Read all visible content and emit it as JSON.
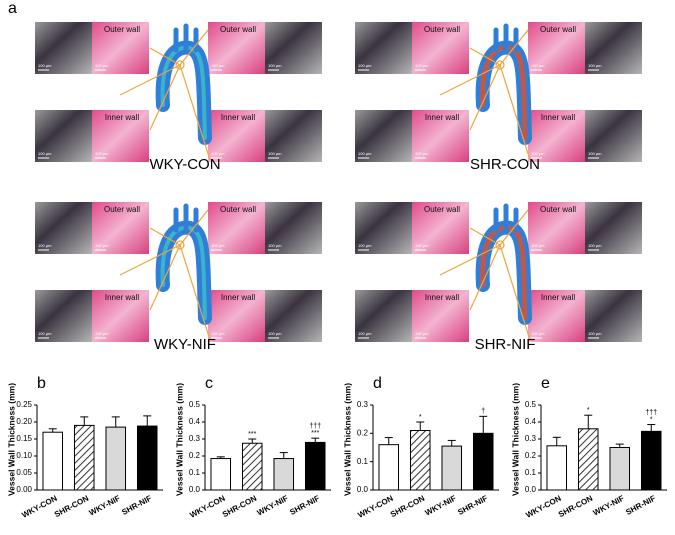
{
  "panel_a": {
    "label": "a",
    "scale_bar": "100 µm",
    "groups": [
      {
        "name": "WKY-CON",
        "outer": "Outer wall",
        "inner": "Inner wall"
      },
      {
        "name": "SHR-CON",
        "outer": "Outer wall",
        "inner": "Inner wall"
      },
      {
        "name": "WKY-NIF",
        "outer": "Outer wall",
        "inner": "Inner wall"
      },
      {
        "name": "SHR-NIF",
        "outer": "Outer wall",
        "inner": "Inner wall"
      }
    ]
  },
  "chart_data": [
    {
      "type": "bar",
      "panel": "b",
      "y_label": "Vessel Wall Thickness (mm)",
      "categories": [
        "WKY-CON",
        "SHR-CON",
        "WKY-NIF",
        "SHR-NIF"
      ],
      "values": [
        0.17,
        0.19,
        0.185,
        0.188
      ],
      "errors": [
        0.01,
        0.025,
        0.03,
        0.03
      ],
      "colors": [
        "#ffffff",
        "#ffffff",
        "#d9d9d9",
        "#000000"
      ],
      "hatched": [
        false,
        true,
        false,
        false
      ],
      "annotations": [
        null,
        null,
        null,
        null
      ],
      "ylim": [
        0,
        0.25
      ],
      "yticks": [
        {
          "value": 0,
          "label": "0.00"
        },
        0.05,
        {
          "value": 0.1,
          "label": "0.10"
        },
        0.15,
        {
          "value": 0.2,
          "label": "0.20"
        },
        0.25
      ]
    },
    {
      "type": "bar",
      "panel": "c",
      "y_label": "Vessel Wall Thickness (mm)",
      "categories": [
        "WKY-CON",
        "SHR-CON",
        "WKY-NIF",
        "SHR-NIF"
      ],
      "values": [
        0.185,
        0.275,
        0.185,
        0.28
      ],
      "errors": [
        0.01,
        0.025,
        0.035,
        0.025
      ],
      "colors": [
        "#ffffff",
        "#ffffff",
        "#d9d9d9",
        "#000000"
      ],
      "hatched": [
        false,
        true,
        false,
        false
      ],
      "annotations": [
        null,
        [
          "***"
        ],
        null,
        [
          "†††",
          "***"
        ]
      ],
      "ylim": [
        0,
        0.5
      ],
      "yticks": [
        {
          "value": 0,
          "label": "0.0"
        },
        0.1,
        0.2,
        0.3,
        0.4,
        0.5
      ]
    },
    {
      "type": "bar",
      "panel": "d",
      "y_label": "Vessel Wall Thickness (mm)",
      "categories": [
        "WKY-CON",
        "SHR-CON",
        "WKY-NIF",
        "SHR-NIF"
      ],
      "values": [
        0.16,
        0.21,
        0.155,
        0.2
      ],
      "errors": [
        0.025,
        0.03,
        0.02,
        0.06
      ],
      "colors": [
        "#ffffff",
        "#ffffff",
        "#d9d9d9",
        "#000000"
      ],
      "hatched": [
        false,
        true,
        false,
        false
      ],
      "annotations": [
        null,
        [
          "*"
        ],
        null,
        [
          "†"
        ]
      ],
      "ylim": [
        0,
        0.3
      ],
      "yticks": [
        {
          "value": 0,
          "label": "0.0"
        },
        0.1,
        0.2,
        0.3
      ]
    },
    {
      "type": "bar",
      "panel": "e",
      "y_label": "Vessel Wall Thickness (mm)",
      "categories": [
        "WKY-CON",
        "SHR-CON",
        "WKY-NIF",
        "SHR-NIF"
      ],
      "values": [
        0.26,
        0.36,
        0.25,
        0.345
      ],
      "errors": [
        0.05,
        0.08,
        0.02,
        0.04
      ],
      "colors": [
        "#ffffff",
        "#ffffff",
        "#d9d9d9",
        "#000000"
      ],
      "hatched": [
        false,
        true,
        false,
        false
      ],
      "annotations": [
        null,
        [
          "*"
        ],
        null,
        [
          "†††",
          "*"
        ]
      ],
      "ylim": [
        0,
        0.5
      ],
      "yticks": [
        {
          "value": 0,
          "label": "0.0"
        },
        0.1,
        0.2,
        0.3,
        0.4,
        0.5
      ]
    }
  ]
}
